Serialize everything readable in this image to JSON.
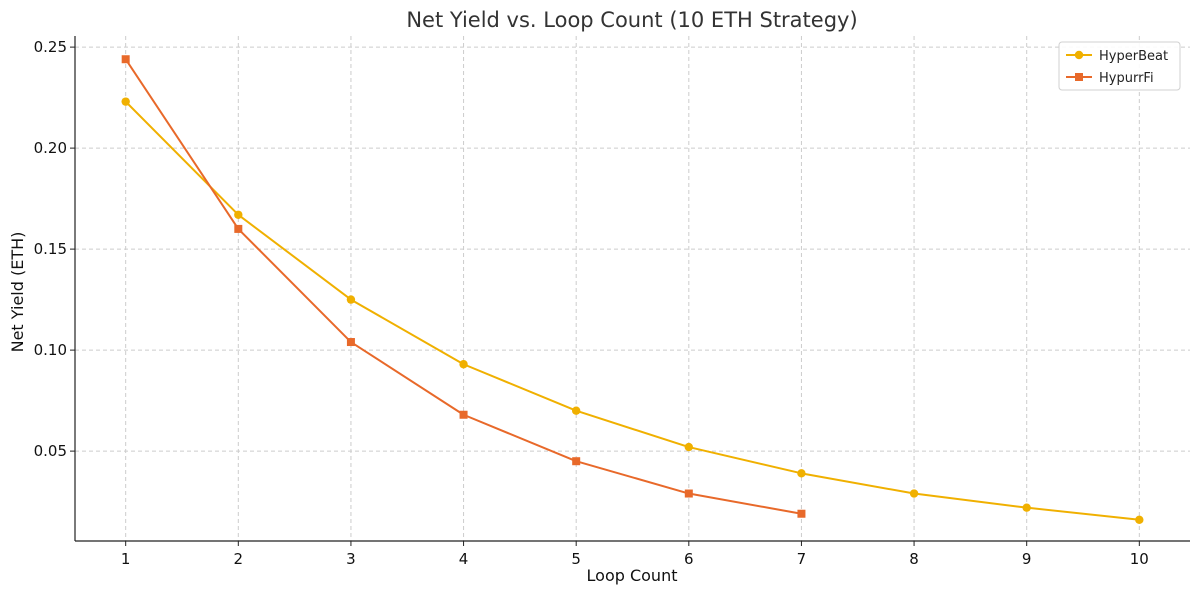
{
  "chart_data": {
    "type": "line",
    "title": "Net Yield vs. Loop Count (10 ETH Strategy)",
    "xlabel": "Loop Count",
    "ylabel": "Net Yield (ETH)",
    "x_ticks": [
      "1",
      "2",
      "3",
      "4",
      "5",
      "6",
      "7",
      "8",
      "9",
      "10"
    ],
    "y_ticks": [
      "0.05",
      "0.10",
      "0.15",
      "0.20",
      "0.25"
    ],
    "xlim": [
      0.55,
      10.45
    ],
    "ylim": [
      0.0055,
      0.2555
    ],
    "grid": true,
    "legend_position": "top-right",
    "series": [
      {
        "name": "HyperBeat",
        "color": "#f0b000",
        "marker": "circle",
        "x": [
          1,
          2,
          3,
          4,
          5,
          6,
          7,
          8,
          9,
          10
        ],
        "values": [
          0.223,
          0.167,
          0.125,
          0.093,
          0.07,
          0.052,
          0.039,
          0.029,
          0.022,
          0.016
        ]
      },
      {
        "name": "HypurrFi",
        "color": "#e8692a",
        "marker": "square",
        "x": [
          1,
          2,
          3,
          4,
          5,
          6,
          7
        ],
        "values": [
          0.244,
          0.16,
          0.104,
          0.068,
          0.045,
          0.029,
          0.019
        ]
      }
    ]
  }
}
